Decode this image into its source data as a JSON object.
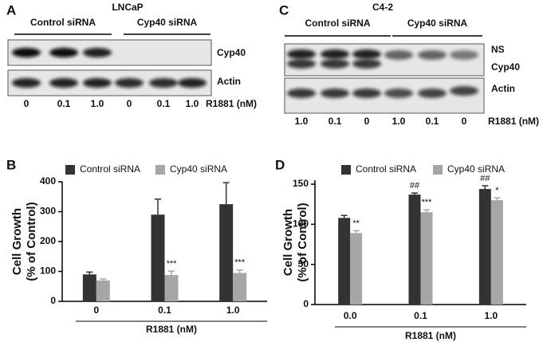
{
  "blots": [
    {
      "panel": "A",
      "title": "LNCaP",
      "groups": [
        "Control siRNA",
        "Cyp40 siRNA"
      ],
      "bands": [
        "Cyp40",
        "Actin"
      ],
      "lanes": [
        "0",
        "0.1",
        "1.0",
        "0",
        "0.1",
        "1.0"
      ],
      "treatment": "R1881 (nM)"
    },
    {
      "panel": "C",
      "title": "C4-2",
      "groups": [
        "Control siRNA",
        "Cyp40 siRNA"
      ],
      "bands": [
        "NS",
        "Cyp40",
        "Actin"
      ],
      "lanes": [
        "1.0",
        "0.1",
        "0",
        "1.0",
        "0.1",
        "0"
      ],
      "treatment": "R1881 (nM)"
    }
  ],
  "chart_data": [
    {
      "panel": "B",
      "type": "bar",
      "ylabel": [
        "Cell Growth",
        "(% of Control)"
      ],
      "xlabel": "R1881 (nM)",
      "categories": [
        "0",
        "0.1",
        "1.0"
      ],
      "series": [
        {
          "name": "Control siRNA",
          "color": "#333333",
          "values": [
            90,
            290,
            325
          ],
          "errors": [
            8,
            52,
            72
          ],
          "significance": [
            null,
            null,
            null
          ]
        },
        {
          "name": "Cyp40 siRNA",
          "color": "#a6a6a6",
          "values": [
            70,
            88,
            95
          ],
          "errors": [
            5,
            13,
            10
          ],
          "significance": [
            null,
            "***",
            "***"
          ]
        }
      ],
      "ylim": [
        0,
        400
      ],
      "yticks": [
        0,
        100,
        200,
        300,
        400
      ]
    },
    {
      "panel": "D",
      "type": "bar",
      "ylabel": [
        "Cell Growth",
        "(% of Control)"
      ],
      "xlabel": "R1881 (nM)",
      "categories": [
        "0.0",
        "0.1",
        "1.0"
      ],
      "series": [
        {
          "name": "Control siRNA",
          "color": "#333333",
          "values": [
            108,
            137,
            144
          ],
          "errors": [
            3,
            2,
            4
          ],
          "significance": [
            null,
            "##",
            "##"
          ]
        },
        {
          "name": "Cyp40 siRNA",
          "color": "#a6a6a6",
          "values": [
            89,
            115,
            130
          ],
          "errors": [
            3,
            3,
            3
          ],
          "significance": [
            "**",
            "***",
            "*"
          ]
        }
      ],
      "ylim": [
        0,
        155
      ],
      "yticks": [
        0,
        50,
        100,
        150
      ]
    }
  ]
}
